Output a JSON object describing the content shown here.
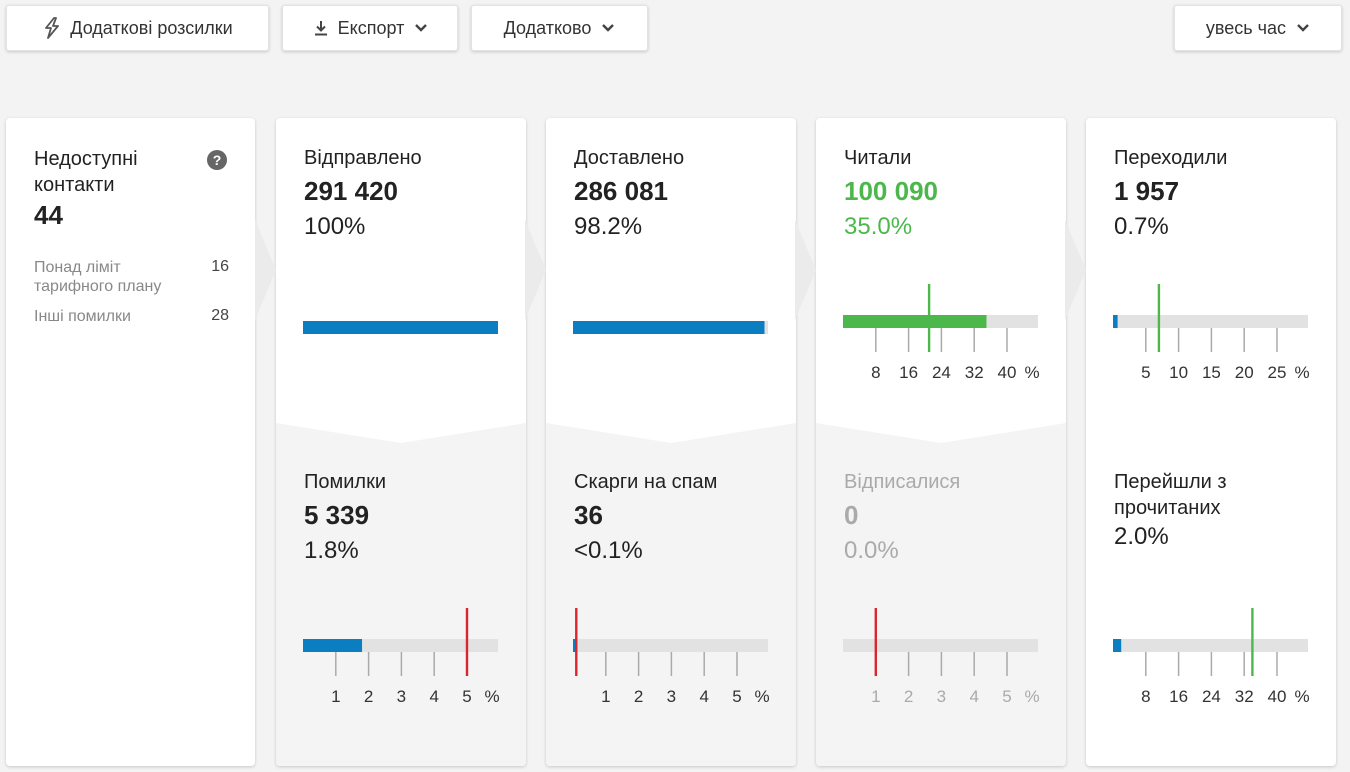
{
  "toolbar": {
    "additional_mailings": "Додаткові розсилки",
    "export": "Експорт",
    "more": "Додатково",
    "period": "увесь час"
  },
  "colors": {
    "blue": "#0a7ec1",
    "green": "#4cb84c",
    "red": "#d9262c",
    "track": "#e2e2e2"
  },
  "unavailable": {
    "label": "Недоступні контакти",
    "value": "44",
    "rows": [
      {
        "label": "Понад ліміт тарифного плану",
        "value": "16"
      },
      {
        "label": "Інші помилки",
        "value": "28"
      }
    ]
  },
  "sent": {
    "label": "Відправлено",
    "value": "291 420",
    "pct": "100%",
    "fill": 1.0
  },
  "errors": {
    "label": "Помилки",
    "value": "5 339",
    "pct": "1.8%",
    "fill_pct": 1.8,
    "marker_pct": 5,
    "ticks": [
      "1",
      "2",
      "3",
      "4",
      "5",
      "%"
    ]
  },
  "delivered": {
    "label": "Доставлено",
    "value": "286 081",
    "pct": "98.2%",
    "fill": 0.982
  },
  "spam": {
    "label": "Скарги на спам",
    "value": "36",
    "pct": "<0.1%",
    "fill_pct": 0.05,
    "marker_pct": 0.1,
    "ticks": [
      "1",
      "2",
      "3",
      "4",
      "5",
      "%"
    ]
  },
  "read": {
    "label": "Читали",
    "value": "100 090",
    "pct": "35.0%",
    "fill_pct": 35.0,
    "marker_pct": 21,
    "ticks": [
      "8",
      "16",
      "24",
      "32",
      "40",
      "%"
    ]
  },
  "unsubscribed": {
    "label": "Відписалися",
    "value": "0",
    "pct": "0.0%",
    "fill_pct": 0,
    "marker_pct": 1,
    "ticks": [
      "1",
      "2",
      "3",
      "4",
      "5",
      "%"
    ]
  },
  "clicked": {
    "label": "Переходили",
    "value": "1 957",
    "pct": "0.7%",
    "fill_pct": 0.7,
    "marker_pct": 7,
    "ticks": [
      "5",
      "10",
      "15",
      "20",
      "25",
      "%"
    ]
  },
  "clicked_from_read": {
    "label": "Перейшли з прочитаних",
    "pct": "2.0%",
    "fill_pct": 2.0,
    "marker_pct": 34,
    "ticks": [
      "8",
      "16",
      "24",
      "32",
      "40",
      "%"
    ]
  }
}
